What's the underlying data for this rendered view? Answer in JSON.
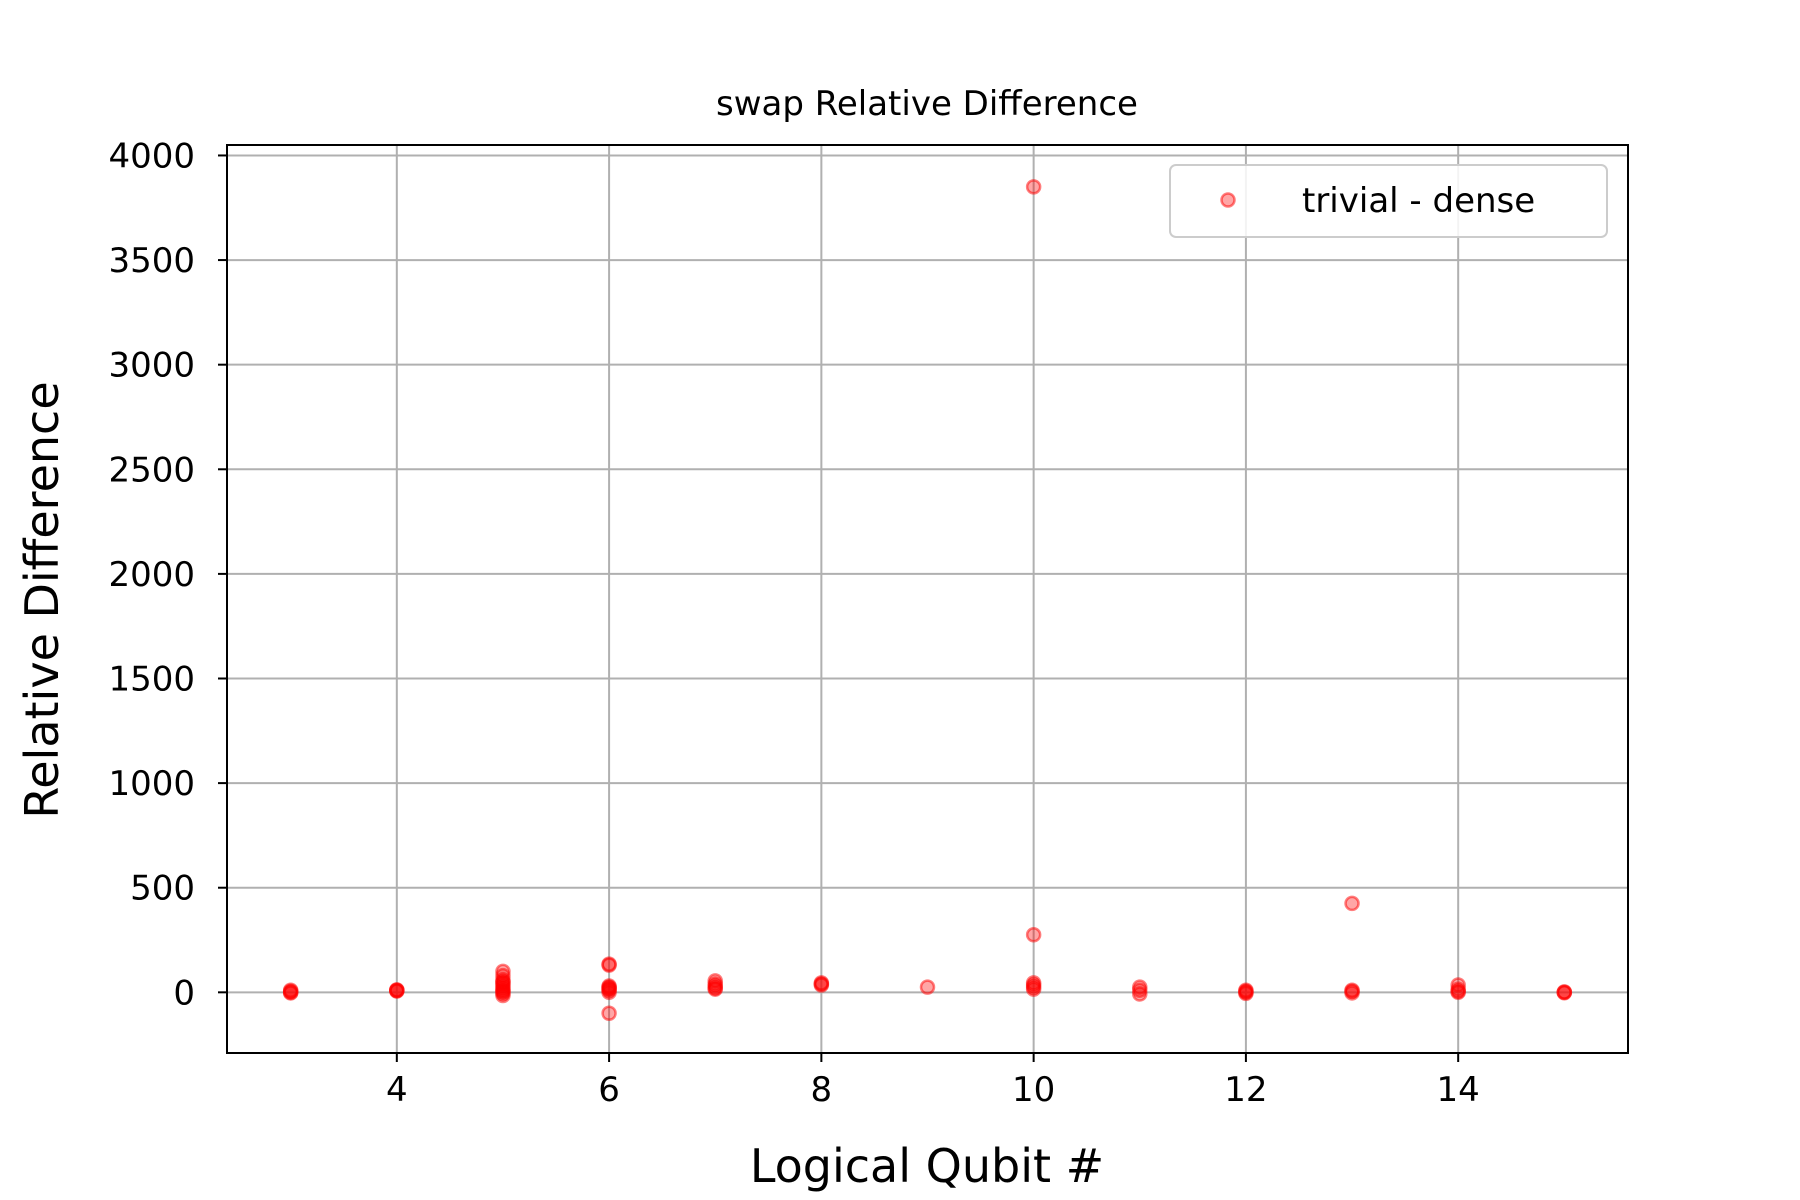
{
  "chart_data": {
    "type": "scatter",
    "title": "swap Relative Difference",
    "xlabel": "Logical Qubit #",
    "ylabel": "Relative Difference",
    "xlim": [
      2.4,
      15.6
    ],
    "ylim": [
      -290,
      4050
    ],
    "xticks": [
      4,
      6,
      8,
      10,
      12,
      14
    ],
    "yticks": [
      0,
      500,
      1000,
      1500,
      2000,
      2500,
      3000,
      3500,
      4000
    ],
    "grid": true,
    "legend_position": "top-right",
    "series": [
      {
        "name": "trivial - dense",
        "color": "#ff0000",
        "alpha": 0.35,
        "points": [
          {
            "x": 3,
            "y": 5
          },
          {
            "x": 3,
            "y": 10
          },
          {
            "x": 3,
            "y": 0
          },
          {
            "x": 3,
            "y": -3
          },
          {
            "x": 4,
            "y": 10
          },
          {
            "x": 4,
            "y": 12
          },
          {
            "x": 4,
            "y": 8
          },
          {
            "x": 4,
            "y": 6
          },
          {
            "x": 5,
            "y": 100
          },
          {
            "x": 5,
            "y": 80
          },
          {
            "x": 5,
            "y": 60
          },
          {
            "x": 5,
            "y": 45
          },
          {
            "x": 5,
            "y": 35
          },
          {
            "x": 5,
            "y": 25
          },
          {
            "x": 5,
            "y": 15
          },
          {
            "x": 5,
            "y": 8
          },
          {
            "x": 5,
            "y": 2
          },
          {
            "x": 5,
            "y": -5
          },
          {
            "x": 5,
            "y": -15
          },
          {
            "x": 5,
            "y": 50
          },
          {
            "x": 6,
            "y": 135
          },
          {
            "x": 6,
            "y": 130
          },
          {
            "x": 6,
            "y": 30
          },
          {
            "x": 6,
            "y": 25
          },
          {
            "x": 6,
            "y": 20
          },
          {
            "x": 6,
            "y": 15
          },
          {
            "x": 6,
            "y": 10
          },
          {
            "x": 6,
            "y": 0
          },
          {
            "x": 6,
            "y": -100
          },
          {
            "x": 7,
            "y": 55
          },
          {
            "x": 7,
            "y": 40
          },
          {
            "x": 7,
            "y": 30
          },
          {
            "x": 7,
            "y": 20
          },
          {
            "x": 7,
            "y": 15
          },
          {
            "x": 8,
            "y": 45
          },
          {
            "x": 8,
            "y": 40
          },
          {
            "x": 8,
            "y": 35
          },
          {
            "x": 9,
            "y": 25
          },
          {
            "x": 10,
            "y": 3850
          },
          {
            "x": 10,
            "y": 275
          },
          {
            "x": 10,
            "y": 45
          },
          {
            "x": 10,
            "y": 35
          },
          {
            "x": 10,
            "y": 25
          },
          {
            "x": 10,
            "y": 15
          },
          {
            "x": 11,
            "y": 25
          },
          {
            "x": 11,
            "y": 10
          },
          {
            "x": 11,
            "y": -8
          },
          {
            "x": 12,
            "y": 10
          },
          {
            "x": 12,
            "y": 5
          },
          {
            "x": 12,
            "y": 0
          },
          {
            "x": 12,
            "y": -5
          },
          {
            "x": 13,
            "y": 425
          },
          {
            "x": 13,
            "y": 10
          },
          {
            "x": 13,
            "y": 5
          },
          {
            "x": 13,
            "y": -3
          },
          {
            "x": 14,
            "y": 35
          },
          {
            "x": 14,
            "y": 15
          },
          {
            "x": 14,
            "y": 5
          },
          {
            "x": 14,
            "y": 0
          },
          {
            "x": 15,
            "y": 0
          },
          {
            "x": 15,
            "y": -2
          },
          {
            "x": 15,
            "y": 2
          }
        ]
      }
    ]
  }
}
